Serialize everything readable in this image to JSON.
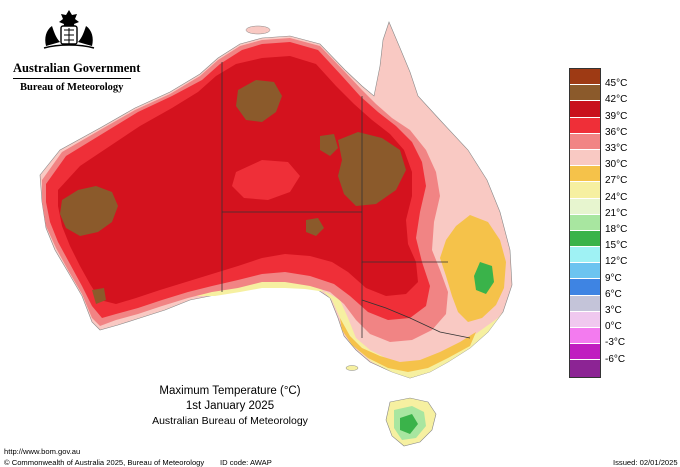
{
  "header": {
    "government": "Australian Government",
    "agency": "Bureau of Meteorology"
  },
  "legend": {
    "items": [
      {
        "label": "45°C",
        "color": "#9e3a14"
      },
      {
        "label": "42°C",
        "color": "#8b5a2b"
      },
      {
        "label": "39°C",
        "color": "#c8101c"
      },
      {
        "label": "36°C",
        "color": "#ef2f38"
      },
      {
        "label": "33°C",
        "color": "#f18484"
      },
      {
        "label": "30°C",
        "color": "#f9c9c3"
      },
      {
        "label": "27°C",
        "color": "#f5c24a"
      },
      {
        "label": "24°C",
        "color": "#f6f0a1"
      },
      {
        "label": "21°C",
        "color": "#e7f5cf"
      },
      {
        "label": "18°C",
        "color": "#a8e6a0"
      },
      {
        "label": "15°C",
        "color": "#3ab34a"
      },
      {
        "label": "12°C",
        "color": "#9ff2f4"
      },
      {
        "label": "9°C",
        "color": "#6cc4f0"
      },
      {
        "label": "6°C",
        "color": "#3e84e3"
      },
      {
        "label": "3°C",
        "color": "#c4c4d9"
      },
      {
        "label": "0°C",
        "color": "#f0c8ef"
      },
      {
        "label": "-3°C",
        "color": "#f37bef"
      },
      {
        "label": "-6°C",
        "color": "#c01cc0"
      }
    ],
    "bottom_color": "#8c2494"
  },
  "map": {
    "title": "Maximum Temperature (°C)",
    "date": "1st January 2025",
    "agency": "Australian Bureau of Meteorology"
  },
  "footer": {
    "url": "http://www.bom.gov.au",
    "copyright": "© Commonwealth of Australia 2025, Bureau of Meteorology",
    "id_code": "ID code: AWAP",
    "issued": "Issued: 02/01/2025"
  },
  "colors": {
    "deep_red": "#d4121e",
    "red": "#ef2f38",
    "brown": "#8b5a2b",
    "pink": "#f18484",
    "light_pink": "#f9c9c3",
    "orange": "#f5c24a",
    "yellow": "#f6f0a1",
    "green": "#3ab34a",
    "state_border": "#333333"
  }
}
